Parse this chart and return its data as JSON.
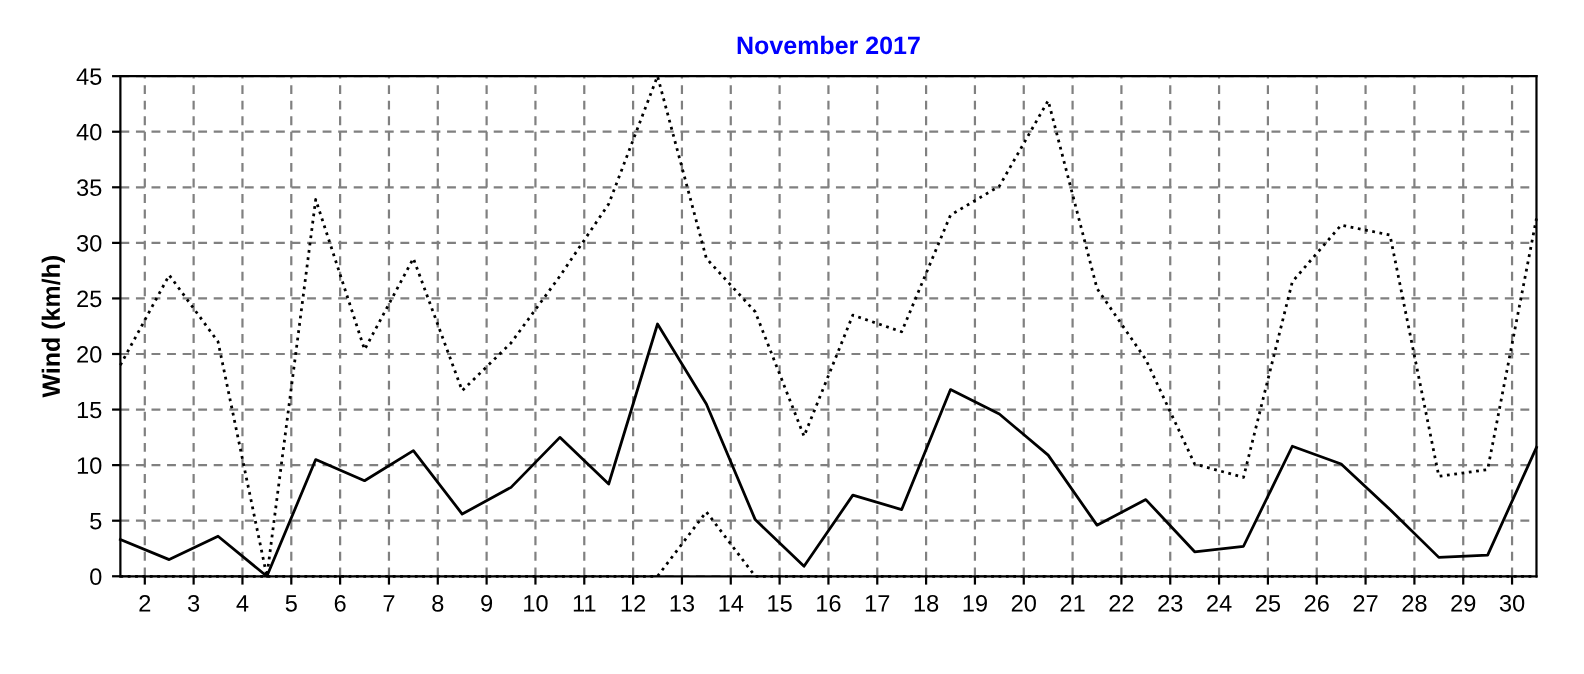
{
  "chart_data": {
    "type": "line",
    "title": "November 2017",
    "ylabel": "Wind (km/h)",
    "x": [
      1.5,
      2.5,
      3.5,
      4.5,
      5.5,
      6.5,
      7.5,
      8.5,
      9.5,
      10.5,
      11.5,
      12.5,
      13.5,
      14.5,
      15.5,
      16.5,
      17.5,
      18.5,
      19.5,
      20.5,
      21.5,
      22.5,
      23.5,
      24.5,
      25.5,
      26.5,
      27.5,
      28.5,
      29.5,
      30.5
    ],
    "series": [
      {
        "color": "#000000",
        "line_style": "dotted",
        "values": [
          19.0,
          27.1,
          21.1,
          0,
          33.9,
          20.4,
          28.6,
          16.7,
          21.0,
          27.0,
          33.5,
          45.0,
          28.6,
          23.8,
          12.6,
          23.5,
          22.0,
          32.5,
          35.1,
          42.8,
          25.9,
          19.5,
          10.1,
          8.9,
          26.5,
          31.6,
          30.7,
          9.0,
          9.6,
          32.2
        ]
      },
      {
        "color": "#000000",
        "line_style": "solid",
        "values": [
          3.3,
          1.5,
          3.6,
          0,
          10.5,
          8.6,
          11.3,
          5.6,
          8.0,
          12.5,
          8.3,
          22.7,
          15.5,
          5.1,
          0.9,
          7.3,
          6.0,
          16.8,
          14.6,
          10.9,
          4.6,
          6.9,
          2.2,
          2.7,
          11.7,
          10.1,
          6.0,
          1.7,
          1.9,
          11.6
        ]
      },
      {
        "color": "#000000",
        "line_style": "dotted",
        "values": [
          0,
          0,
          0,
          0,
          0,
          0,
          0,
          0,
          0,
          0,
          0,
          0,
          5.8,
          0,
          0,
          0,
          0,
          0,
          0,
          0,
          0,
          0,
          0,
          0,
          0,
          0,
          0,
          0,
          0,
          0
        ]
      }
    ],
    "xlim": [
      1.5,
      30.5
    ],
    "xticks": [
      2,
      3,
      4,
      5,
      6,
      7,
      8,
      9,
      10,
      11,
      12,
      13,
      14,
      15,
      16,
      17,
      18,
      19,
      20,
      21,
      22,
      23,
      24,
      25,
      26,
      27,
      28,
      29,
      30
    ],
    "ylim": [
      0,
      45
    ],
    "yticks": [
      0,
      5,
      10,
      15,
      20,
      25,
      30,
      35,
      40,
      45
    ],
    "grid": true,
    "legend": false,
    "marker": "none"
  }
}
